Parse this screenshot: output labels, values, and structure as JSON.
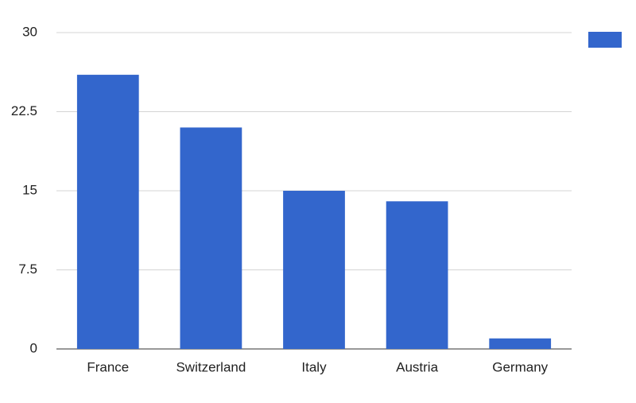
{
  "chart_data": {
    "type": "bar",
    "categories": [
      "France",
      "Switzerland",
      "Italy",
      "Austria",
      "Germany"
    ],
    "values": [
      26,
      21,
      15,
      14,
      1
    ],
    "color": "#3366cc",
    "ylim": [
      0,
      30
    ],
    "yticks": [
      0,
      7.5,
      15,
      22.5,
      30
    ],
    "grid": true,
    "legend": "top-right"
  }
}
